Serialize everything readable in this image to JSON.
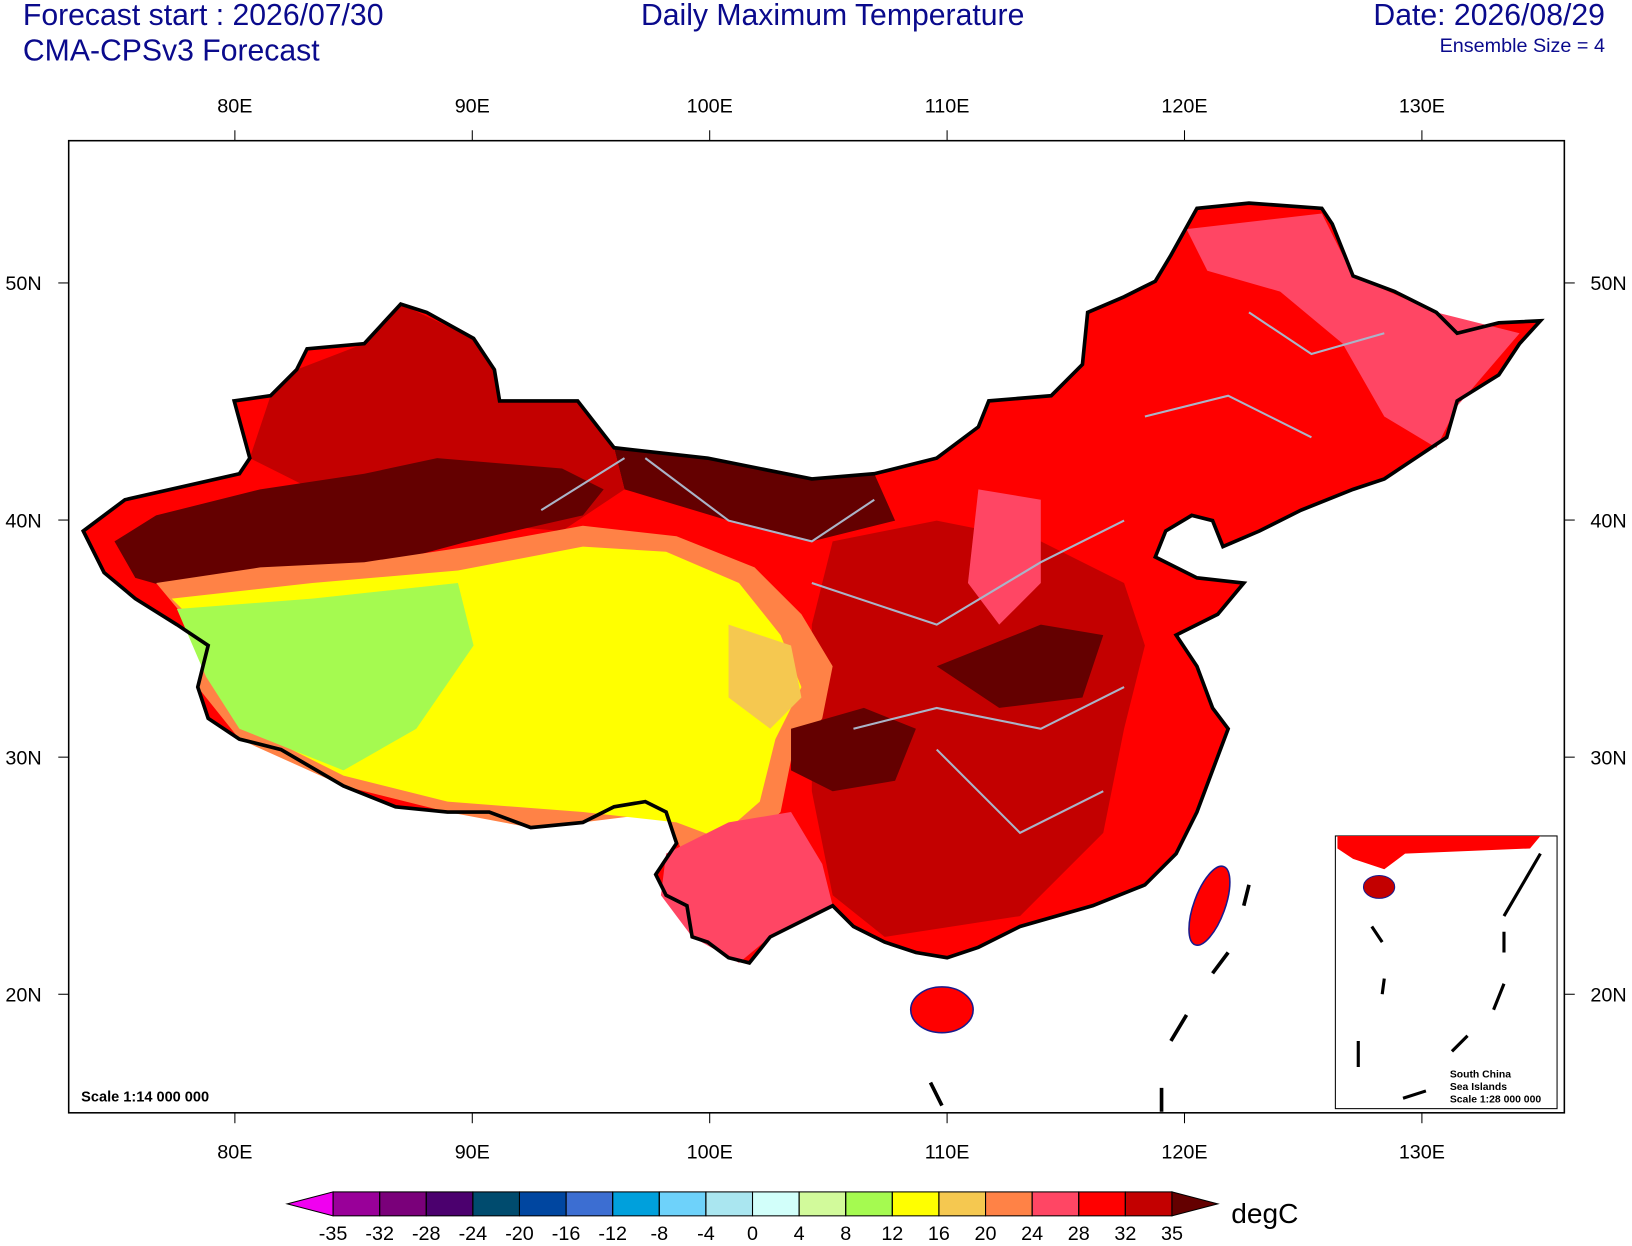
{
  "header": {
    "forecast_start": "Forecast start : 2026/07/30",
    "model": "CMA-CPSv3 Forecast",
    "title": "Daily Maximum Temperature",
    "date": "Date: 2026/08/29",
    "ensemble": "Ensemble Size = 4"
  },
  "map": {
    "lonlim": [
      73,
      136
    ],
    "latlim": [
      15,
      56
    ],
    "lon_ticks": [
      {
        "value": 80,
        "label": "80E"
      },
      {
        "value": 90,
        "label": "90E"
      },
      {
        "value": 100,
        "label": "100E"
      },
      {
        "value": 110,
        "label": "110E"
      },
      {
        "value": 120,
        "label": "120E"
      },
      {
        "value": 130,
        "label": "130E"
      }
    ],
    "lat_ticks": [
      {
        "value": 20,
        "label": "20N"
      },
      {
        "value": 30,
        "label": "30N"
      },
      {
        "value": 40,
        "label": "40N"
      },
      {
        "value": 50,
        "label": "50N"
      }
    ],
    "scale": "Scale 1:14 000 000",
    "inset": [
      "South China",
      "Sea Islands",
      "Scale 1:28 000 000"
    ]
  },
  "colorbar": {
    "levels": [
      -35,
      -32,
      -28,
      -24,
      -20,
      -16,
      -12,
      -8,
      -4,
      0,
      4,
      8,
      12,
      16,
      20,
      24,
      28,
      32,
      35
    ],
    "colors": [
      "#f000f0",
      "#990099",
      "#7a007a",
      "#4b006e",
      "#004b6e",
      "#0046a0",
      "#3c6ed2",
      "#00a0dc",
      "#6ed2fa",
      "#aae6f0",
      "#d2fffa",
      "#d2fa9b",
      "#a5fa50",
      "#ffff00",
      "#f5c850",
      "#ff8246",
      "#ff4664",
      "#ff0000",
      "#c30000",
      "#640000"
    ],
    "units": "degC"
  }
}
